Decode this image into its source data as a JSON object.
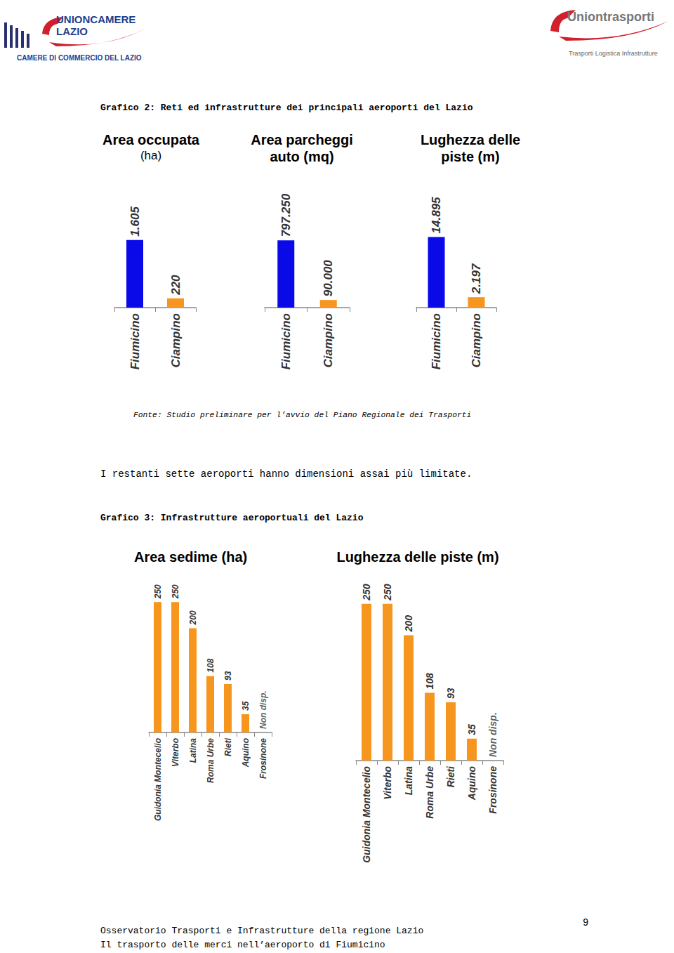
{
  "header": {
    "left_logo": [
      "UNIONCAMERE",
      "LAZIO"
    ],
    "left_logo_sub": "CAMERE DI COMMERCIO DEL LAZIO",
    "right_logo": "Uniontrasporti",
    "right_logo_sub": "Trasporti Logistica Infrastrutture"
  },
  "figure2_title": "Grafico 2: Reti ed infrastrutture dei principali aeroporti del Lazio",
  "source": "Fonte: Studio preliminare per l’avvio del Piano Regionale dei Trasporti",
  "paragraph": "I restanti sette aeroporti hanno dimensioni assai più limitate.",
  "figure3_title": "Grafico 3: Infrastrutture aeroportuali del Lazio",
  "footer": [
    "Osservatorio Trasporti e Infrastrutture della regione Lazio",
    "Il trasporto delle merci nell’aeroporto di Fiumicino"
  ],
  "page_number": "9",
  "chart_data": [
    {
      "type": "bar",
      "title": "Area occupata",
      "subtitle": "(ha)",
      "categories": [
        "Fiumicino",
        "Ciampino"
      ],
      "values": [
        1605,
        220
      ],
      "value_labels": [
        "1.605",
        "220"
      ],
      "colors": [
        "#0a0ae8",
        "#f7961e"
      ],
      "ylim": [
        0,
        1800
      ],
      "data_labels": true,
      "tick_labels": "x"
    },
    {
      "type": "bar",
      "title": "Area parcheggi\nauto (mq)",
      "categories": [
        "Fiumicino",
        "Ciampino"
      ],
      "values": [
        797250,
        90000
      ],
      "value_labels": [
        "797.250",
        "90.000"
      ],
      "colors": [
        "#0a0ae8",
        "#f7961e"
      ],
      "ylim": [
        0,
        900000
      ],
      "data_labels": true,
      "tick_labels": "x"
    },
    {
      "type": "bar",
      "title": "Lughezza delle\npiste (m)",
      "categories": [
        "Fiumicino",
        "Ciampino"
      ],
      "values": [
        14895,
        2197
      ],
      "value_labels": [
        "14.895",
        "2.197"
      ],
      "colors": [
        "#0a0ae8",
        "#f7961e"
      ],
      "ylim": [
        0,
        16000
      ],
      "data_labels": true,
      "tick_labels": "x"
    },
    {
      "type": "bar",
      "title": "Area sedime (ha)",
      "categories": [
        "Guidonia Montecelio",
        "Viterbo",
        "Latina",
        "Roma Urbe",
        "Rieti",
        "Aquino",
        "Frosinone"
      ],
      "values": [
        250,
        250,
        200,
        108,
        93,
        35,
        null
      ],
      "value_labels": [
        "250",
        "250",
        "200",
        "108",
        "93",
        "35",
        "Non disp."
      ],
      "color": "#f7961e",
      "ylim": [
        0,
        280
      ],
      "data_labels": true,
      "tick_labels": "x"
    },
    {
      "type": "bar",
      "title": "Lughezza delle piste (m)",
      "categories": [
        "Guidonia Montecelio",
        "Viterbo",
        "Latina",
        "Roma Urbe",
        "Rieti",
        "Aquino",
        "Frosinone"
      ],
      "values": [
        250,
        250,
        200,
        108,
        93,
        35,
        null
      ],
      "value_labels": [
        "250",
        "250",
        "200",
        "108",
        "93",
        "35",
        "Non disp."
      ],
      "color": "#f7961e",
      "ylim": [
        0,
        280
      ],
      "data_labels": true,
      "tick_labels": "x"
    }
  ]
}
